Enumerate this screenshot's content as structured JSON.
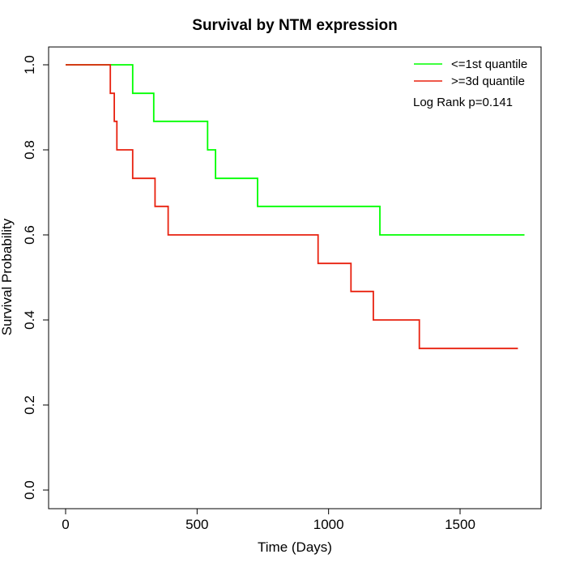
{
  "chart_data": {
    "type": "line",
    "title": "Survival by NTM expression",
    "xlabel": "Time (Days)",
    "ylabel": "Survival Probability",
    "xlim": [
      0,
      1800
    ],
    "ylim": [
      0,
      1.0
    ],
    "x_ticks": [
      0,
      500,
      1000,
      1500
    ],
    "y_ticks": [
      0.0,
      0.2,
      0.4,
      0.6,
      0.8,
      1.0
    ],
    "x_tick_labels": [
      "0",
      "500",
      "1000",
      "1500"
    ],
    "y_tick_labels": [
      "0.0",
      "0.2",
      "0.4",
      "0.6",
      "0.8",
      "1.0"
    ],
    "grid": false,
    "legend_position": "top-right",
    "annotation": "Log Rank p=0.141",
    "series": [
      {
        "name": "<=1st quantile",
        "color": "#00ff00",
        "step": true,
        "x": [
          0,
          255,
          335,
          540,
          570,
          730,
          1195,
          1745
        ],
        "y": [
          1.0,
          0.933,
          0.867,
          0.8,
          0.733,
          0.667,
          0.6,
          0.6
        ]
      },
      {
        "name": ">=3d quantile",
        "color": "#e8210f",
        "step": true,
        "x": [
          0,
          170,
          185,
          195,
          255,
          340,
          390,
          960,
          1085,
          1170,
          1345,
          1720
        ],
        "y": [
          1.0,
          0.933,
          0.867,
          0.8,
          0.733,
          0.667,
          0.6,
          0.533,
          0.467,
          0.4,
          0.333,
          0.333
        ]
      }
    ]
  }
}
